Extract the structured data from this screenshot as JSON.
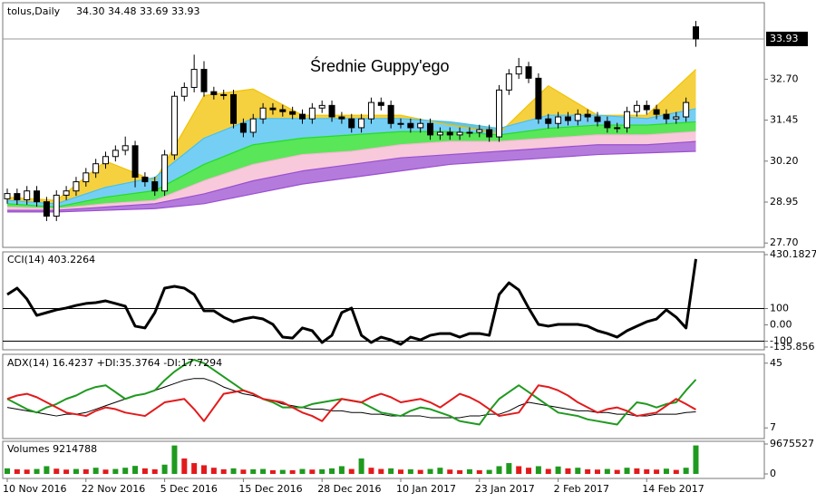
{
  "chart_data": [
    {
      "type": "candlestick",
      "title": "tolus,Daily",
      "ohlc_label": "34.30 34.48 33.69 33.93",
      "annotation": "Średnie Guppy'ego",
      "categories": [
        "10 Nov 2016",
        null,
        null,
        null,
        null,
        null,
        null,
        null,
        "22 Nov 2016",
        null,
        null,
        null,
        null,
        null,
        null,
        null,
        "5 Dec 2016",
        null,
        null,
        null,
        null,
        null,
        null,
        null,
        "15 Dec 2016",
        null,
        null,
        null,
        null,
        null,
        null,
        null,
        "28 Dec 2016",
        null,
        null,
        null,
        null,
        null,
        null,
        null,
        "10 Jan 2017",
        null,
        null,
        null,
        null,
        null,
        null,
        null,
        "23 Jan 2017",
        null,
        null,
        null,
        null,
        null,
        null,
        null,
        "2 Feb 2017",
        null,
        null,
        null,
        null,
        null,
        null,
        null,
        null,
        "14 Feb 2017",
        null,
        null,
        null,
        null,
        null
      ],
      "open": [
        29.05,
        29.21,
        29.02,
        29.29,
        28.96,
        28.52,
        29.16,
        29.29,
        29.57,
        29.84,
        30.12,
        30.34,
        30.53,
        30.67,
        29.71,
        29.57,
        29.29,
        30.39,
        32.18,
        32.45,
        33.0,
        32.32,
        32.23,
        32.23,
        31.35,
        31.08,
        31.49,
        31.82,
        31.77,
        31.71,
        31.63,
        31.49,
        31.82,
        31.9,
        31.55,
        31.49,
        31.22,
        31.49,
        31.99,
        31.9,
        31.35,
        31.35,
        31.22,
        31.35,
        31.0,
        31.08,
        31.0,
        31.08,
        31.08,
        31.16,
        30.94,
        32.37,
        32.86,
        33.08,
        32.73,
        31.49,
        31.35,
        31.55,
        31.44,
        31.63,
        31.55,
        31.41,
        31.22,
        31.22,
        31.71,
        31.9,
        31.77,
        31.63,
        31.49,
        31.55,
        34.3
      ],
      "high": [
        29.36,
        29.36,
        29.44,
        29.44,
        29.11,
        29.31,
        29.44,
        29.72,
        29.99,
        30.27,
        30.49,
        30.68,
        30.95,
        30.82,
        29.86,
        29.72,
        30.54,
        32.33,
        32.6,
        33.45,
        33.25,
        32.47,
        32.38,
        32.38,
        31.5,
        31.64,
        31.97,
        31.97,
        31.92,
        31.86,
        31.78,
        31.97,
        32.05,
        32.05,
        31.7,
        31.64,
        31.64,
        32.14,
        32.14,
        32.05,
        31.5,
        31.5,
        31.5,
        31.5,
        31.23,
        31.23,
        31.23,
        31.23,
        31.31,
        31.31,
        32.52,
        33.01,
        33.35,
        33.23,
        32.88,
        31.64,
        31.7,
        31.7,
        31.78,
        31.78,
        31.7,
        31.56,
        31.37,
        31.86,
        32.05,
        32.05,
        31.92,
        31.78,
        31.7,
        32.14,
        34.48
      ],
      "low": [
        28.9,
        28.87,
        28.87,
        28.81,
        28.37,
        28.37,
        29.01,
        29.14,
        29.42,
        29.69,
        29.97,
        30.19,
        30.38,
        29.4,
        29.42,
        29.14,
        29.14,
        30.24,
        32.03,
        32.3,
        32.17,
        32.08,
        32.08,
        31.2,
        30.93,
        30.93,
        31.34,
        31.62,
        31.56,
        31.48,
        31.34,
        31.34,
        31.67,
        31.4,
        31.34,
        31.07,
        31.07,
        31.34,
        31.75,
        31.2,
        31.2,
        31.07,
        31.07,
        30.85,
        30.85,
        30.85,
        30.85,
        30.93,
        30.93,
        30.79,
        30.79,
        32.22,
        32.71,
        32.58,
        31.34,
        31.2,
        31.2,
        31.29,
        31.29,
        31.4,
        31.26,
        31.07,
        31.07,
        31.07,
        31.56,
        31.62,
        31.48,
        31.34,
        31.34,
        31.4,
        33.69
      ],
      "close": [
        29.21,
        29.02,
        29.29,
        28.96,
        28.52,
        29.16,
        29.29,
        29.57,
        29.84,
        30.12,
        30.34,
        30.53,
        30.67,
        29.71,
        29.57,
        29.29,
        30.39,
        32.18,
        32.45,
        33.0,
        32.32,
        32.23,
        32.23,
        31.35,
        31.08,
        31.49,
        31.82,
        31.77,
        31.71,
        31.63,
        31.49,
        31.82,
        31.9,
        31.55,
        31.49,
        31.22,
        31.49,
        31.99,
        31.9,
        31.35,
        31.35,
        31.22,
        31.35,
        31.0,
        31.08,
        31.0,
        31.08,
        31.08,
        31.16,
        30.94,
        32.37,
        32.86,
        33.08,
        32.73,
        31.49,
        31.35,
        31.55,
        31.44,
        31.63,
        31.55,
        31.41,
        31.22,
        31.22,
        31.71,
        31.9,
        31.77,
        31.63,
        31.49,
        31.55,
        31.99,
        33.93
      ],
      "ribbon_x": [
        0,
        5,
        10,
        15,
        20,
        25,
        30,
        35,
        40,
        45,
        50,
        55,
        60,
        65,
        70
      ],
      "ribbons": [
        {
          "color": "#f2c200",
          "values": [
            29.1,
            29.0,
            30.2,
            29.6,
            32.2,
            32.4,
            31.6,
            31.6,
            31.6,
            31.3,
            31.05,
            32.5,
            31.6,
            31.6,
            33.0
          ]
        },
        {
          "color": "#47bff0",
          "values": [
            29.0,
            28.9,
            29.4,
            29.7,
            30.9,
            31.5,
            31.5,
            31.5,
            31.5,
            31.4,
            31.2,
            31.6,
            31.6,
            31.5,
            31.8
          ]
        },
        {
          "color": "#22dd22",
          "values": [
            28.9,
            28.8,
            29.1,
            29.3,
            30.1,
            30.7,
            30.9,
            31.0,
            31.1,
            31.1,
            31.0,
            31.2,
            31.3,
            31.3,
            31.4
          ]
        },
        {
          "color": "#f5b7cf",
          "values": [
            28.8,
            28.75,
            28.9,
            29.0,
            29.6,
            30.1,
            30.4,
            30.5,
            30.7,
            30.8,
            30.8,
            30.9,
            31.0,
            31.0,
            31.1
          ]
        },
        {
          "color": "#9b4fd0",
          "values": [
            28.7,
            28.7,
            28.8,
            28.9,
            29.2,
            29.6,
            29.9,
            30.1,
            30.3,
            30.4,
            30.5,
            30.6,
            30.7,
            30.7,
            30.8
          ]
        },
        {
          "color": "#9b4fd0",
          "values": [
            28.65,
            28.65,
            28.7,
            28.75,
            28.9,
            29.2,
            29.5,
            29.7,
            29.9,
            30.1,
            30.2,
            30.3,
            30.4,
            30.45,
            30.5
          ]
        }
      ],
      "ylim": [
        27.65,
        34.98
      ],
      "yticks": [
        {
          "value": 27.7,
          "label": "27.70"
        },
        28.95,
        {
          "value": 30.2,
          "label": "30.20"
        },
        31.45,
        {
          "value": 32.7,
          "label": "32.70"
        }
      ],
      "last_price": 33.93,
      "up_color": "#ffffff",
      "down_color": "#000000"
    },
    {
      "type": "line",
      "title": "CCI(14) 403.2264",
      "color": "#000000",
      "width": 3,
      "values": [
        186,
        225,
        158,
        58,
        75,
        92,
        103,
        119,
        131,
        136,
        147,
        131,
        114,
        -8,
        -19,
        75,
        225,
        236,
        225,
        186,
        86,
        86,
        47,
        19,
        36,
        47,
        36,
        3,
        -75,
        -81,
        -19,
        -36,
        -108,
        -64,
        75,
        103,
        -64,
        -108,
        -75,
        -92,
        -119,
        -75,
        -92,
        -64,
        -53,
        -53,
        -75,
        -53,
        -53,
        -64,
        186,
        258,
        214,
        103,
        3,
        -8,
        3,
        3,
        3,
        -8,
        -36,
        -53,
        -75,
        -36,
        -8,
        19,
        36,
        92,
        47,
        -19,
        403.2264
      ],
      "ylim": [
        -135.856,
        430.1827
      ],
      "yticks": [
        430.1827,
        100,
        {
          "value": 0,
          "label": "0.00"
        },
        -100,
        -135.856
      ],
      "levels": [
        100,
        -100
      ]
    },
    {
      "type": "multiline",
      "title": "ADX(14) 16.4237 +DI:35.3764 -DI:17.7294",
      "series": [
        {
          "color": "#000000",
          "width": 1,
          "values": [
            19,
            18,
            17,
            16,
            15,
            14,
            15,
            15,
            16,
            18,
            20,
            22,
            24,
            26,
            27,
            29,
            31,
            33,
            35,
            36,
            36,
            34,
            31,
            29,
            27,
            26,
            24,
            23,
            21,
            20,
            19,
            18,
            18,
            17,
            17,
            16,
            16,
            15,
            15,
            14,
            14,
            14,
            14,
            13,
            13,
            13,
            13,
            14,
            14,
            15,
            15,
            17,
            20,
            22,
            21,
            20,
            19,
            18,
            17,
            17,
            16,
            16,
            15,
            15,
            14,
            14,
            15,
            15,
            15,
            16,
            16.4237
          ]
        },
        {
          "color": "#1f9a1f",
          "width": 2,
          "values": [
            24,
            21,
            18,
            16,
            19,
            21,
            24,
            26,
            29,
            31,
            32,
            28,
            24,
            26,
            27,
            29,
            35,
            40,
            44,
            47,
            45,
            41,
            37,
            33,
            29,
            27,
            24,
            22,
            19,
            19,
            19,
            21,
            22,
            23,
            24,
            23,
            22,
            19,
            16,
            15,
            14,
            17,
            19,
            18,
            16,
            14,
            11,
            10,
            9,
            17,
            24,
            28,
            32,
            28,
            24,
            20,
            16,
            15,
            14,
            12,
            11,
            10,
            9,
            16,
            22,
            21,
            19,
            21,
            22,
            29,
            35.3764
          ]
        },
        {
          "color": "#e31a1c",
          "width": 2,
          "values": [
            24,
            26,
            27,
            25,
            22,
            19,
            16,
            15,
            14,
            17,
            19,
            18,
            16,
            15,
            14,
            18,
            22,
            23,
            24,
            18,
            11,
            19,
            27,
            28,
            29,
            27,
            24,
            23,
            22,
            19,
            16,
            14,
            11,
            18,
            24,
            23,
            22,
            25,
            27,
            25,
            22,
            23,
            24,
            22,
            19,
            23,
            27,
            25,
            22,
            18,
            14,
            15,
            16,
            24,
            32,
            31,
            29,
            26,
            22,
            19,
            16,
            18,
            19,
            17,
            14,
            15,
            16,
            20,
            24,
            21,
            17.7294
          ]
        }
      ],
      "ylim": [
        1.8,
        48.6
      ],
      "yticks": [
        45,
        7
      ]
    },
    {
      "type": "volume",
      "title": "Volumes 9214788",
      "up_color": "#1f9a1f",
      "down_color": "#e31a1c",
      "values": [
        1800000,
        1500000,
        1400000,
        1600000,
        2500000,
        1700000,
        1400000,
        1600000,
        1500000,
        2000000,
        1400000,
        1600000,
        2000000,
        2600000,
        1800000,
        1500000,
        3000000,
        9200000,
        5000000,
        3500000,
        2800000,
        2000000,
        1500000,
        1800000,
        1400000,
        1500000,
        1600000,
        1200000,
        1300000,
        1200000,
        1600000,
        1400000,
        1500000,
        1800000,
        2500000,
        1600000,
        5000000,
        2000000,
        1600000,
        1800000,
        1400000,
        1500000,
        1300000,
        1600000,
        2000000,
        1400000,
        1200000,
        1500000,
        1200000,
        1300000,
        2500000,
        3500000,
        2500000,
        2000000,
        2500000,
        1600000,
        2400000,
        1800000,
        2000000,
        1500000,
        1400000,
        1600000,
        1300000,
        2000000,
        1800000,
        1500000,
        1400000,
        1700000,
        1300000,
        2000000,
        9214788
      ],
      "ylim": [
        0,
        9675527
      ],
      "yticks": [
        9675527,
        0
      ]
    }
  ]
}
